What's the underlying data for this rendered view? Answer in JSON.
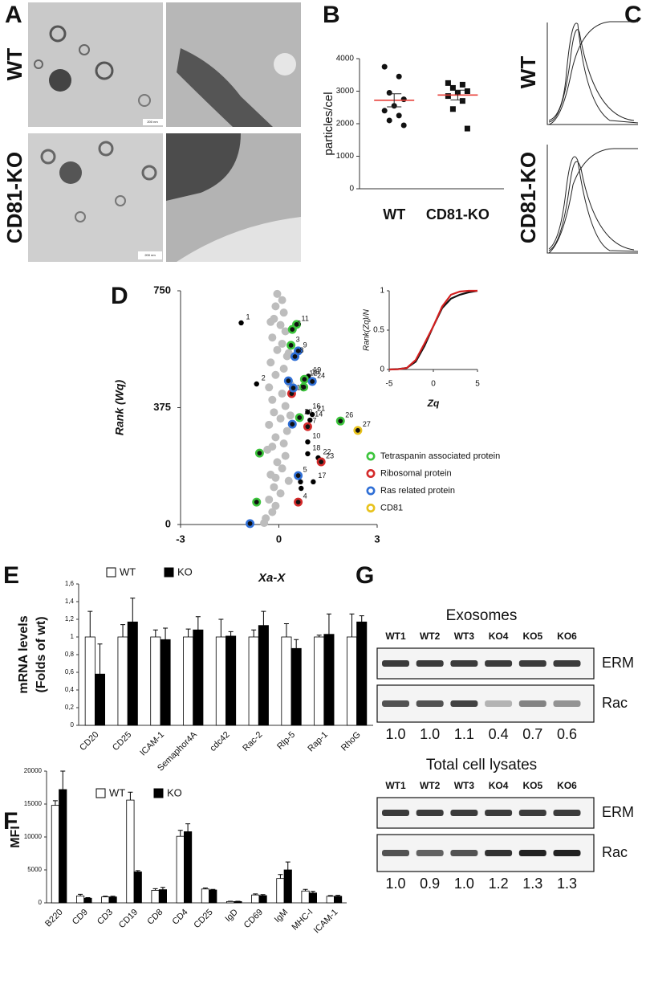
{
  "panel_A": {
    "letter": "A",
    "rows": [
      "WT",
      "CD81-KO"
    ],
    "scale_bars": [
      "200 nm",
      "200 nm"
    ]
  },
  "panel_C": {
    "letter": "C",
    "rows": [
      "WT",
      "CD81-KO"
    ]
  },
  "chart_data": [
    {
      "letter": "B",
      "type": "dotplot",
      "ylabel": "particles/cel",
      "categories": [
        "WT",
        "CD81-KO"
      ],
      "points": [
        [
          3750,
          3450,
          2950,
          2750,
          2550,
          2400,
          2250,
          2100,
          1950
        ],
        [
          3250,
          3200,
          3100,
          3000,
          2950,
          2850,
          2700,
          2450,
          1850
        ]
      ],
      "markers": [
        "circle",
        "square"
      ],
      "mean": [
        2720,
        2880
      ],
      "sem": [
        200,
        150
      ],
      "mean_color": "#e8413b",
      "ylim": [
        0,
        4000
      ],
      "yticks": [
        0,
        1000,
        2000,
        3000,
        4000
      ]
    },
    {
      "letter": "D",
      "type": "scatter",
      "ylabel": "Rank (Wq)",
      "xlim": [
        -3,
        3
      ],
      "ylim": [
        0,
        750
      ],
      "xticks": [
        -3,
        0,
        3
      ],
      "yticks": [
        0,
        375,
        750
      ],
      "series": [
        {
          "color": "#bdbdbd",
          "marker": "dot",
          "x": [
            -0.05,
            0.1,
            -0.1,
            0.15,
            -0.15,
            0.05,
            0.2,
            -0.2,
            0.1,
            -0.05,
            0.25,
            -0.25,
            0.15,
            -0.1,
            0.3,
            -0.3,
            0.1,
            -0.2,
            0.2,
            -0.15,
            0.05,
            -0.3,
            0.25,
            -0.1,
            0.15,
            -0.35,
            0.2,
            -0.05,
            0.1,
            -0.25,
            0.3,
            -0.15,
            0.05,
            -0.3,
            -0.1,
            -0.2,
            -0.4,
            -0.45,
            -0.25,
            0.35,
            -0.2,
            0.3,
            0.35,
            -0.1
          ],
          "y": [
            740,
            720,
            700,
            680,
            660,
            640,
            620,
            600,
            580,
            560,
            540,
            520,
            500,
            480,
            460,
            440,
            420,
            400,
            380,
            360,
            340,
            320,
            300,
            280,
            260,
            240,
            220,
            200,
            180,
            160,
            140,
            120,
            100,
            80,
            60,
            40,
            20,
            5,
            650,
            450,
            250,
            550,
            350,
            150
          ]
        },
        {
          "color": "#000000",
          "marker": "dot",
          "x": [
            -1.15,
            -0.68,
            0.85,
            0.9,
            0.95,
            0.88,
            1.02,
            0.88,
            0.88,
            1.2,
            1.05,
            0.66,
            0.68
          ],
          "y": [
            647,
            451,
            470,
            476,
            335,
            361,
            353,
            265,
            227,
            214,
            137,
            137,
            116
          ],
          "labels": [
            1,
            2,
            13,
            19,
            14,
            16,
            21,
            10,
            18,
            22,
            17,
            null,
            null
          ]
        },
        {
          "name": "Tetraspanin associated protein",
          "color": "#3cc43c",
          "marker": "ring",
          "x": [
            0.54,
            0.41,
            0.37,
            0.78,
            0.76,
            0.63,
            1.88,
            -0.59,
            -0.68
          ],
          "y": [
            642,
            626,
            575,
            466,
            441,
            343,
            332,
            229,
            72
          ],
          "labels": [
            11,
            6,
            3,
            12,
            25,
            20,
            26,
            null,
            null
          ]
        },
        {
          "name": "Ribosomal protein",
          "color": "#d42a2a",
          "marker": "ring",
          "x": [
            0.39,
            0.88,
            1.29,
            0.59
          ],
          "y": [
            420,
            314,
            201,
            72
          ],
          "labels": [
            15,
            7,
            23,
            4
          ]
        },
        {
          "name": "Ras related protein",
          "color": "#2f6fd6",
          "marker": "ring",
          "x": [
            0.59,
            0.49,
            1.02,
            0.29,
            0.44,
            0.41,
            0.59,
            -0.88
          ],
          "y": [
            557,
            539,
            459,
            461,
            438,
            322,
            157,
            3
          ],
          "labels": [
            9,
            8,
            24,
            null,
            null,
            null,
            5,
            null
          ]
        },
        {
          "name": "CD81",
          "color": "#e8c21c",
          "marker": "ring",
          "x": [
            2.41
          ],
          "y": [
            302
          ],
          "labels": [
            27
          ]
        }
      ]
    },
    {
      "type": "line",
      "ylabel": "Rank(Zq)/N",
      "xlabel": "Zq",
      "xlim": [
        -5,
        5
      ],
      "ylim": [
        0,
        1
      ],
      "xticks": [
        -5,
        0,
        5
      ],
      "yticks": [
        0,
        0.5,
        1
      ],
      "x": [
        -5,
        -4,
        -3,
        -2,
        -1,
        0,
        1,
        2,
        3,
        4,
        5
      ],
      "series": [
        {
          "color": "#111111",
          "values": [
            0,
            0.005,
            0.02,
            0.1,
            0.3,
            0.55,
            0.78,
            0.9,
            0.95,
            0.98,
            1
          ]
        },
        {
          "color": "#d42020",
          "values": [
            0,
            0.003,
            0.02,
            0.12,
            0.33,
            0.55,
            0.8,
            0.95,
            0.99,
            1,
            1
          ]
        }
      ]
    },
    {
      "letter": "E",
      "type": "bar",
      "ylabel": [
        "mRNA levels",
        "(Folds of wt)"
      ],
      "annotation": "Xa-X",
      "legend": "top",
      "categories": [
        "CD20",
        "CD25",
        "ICAM-1",
        "Semaphor4A",
        "cdc42",
        "Rac-2",
        "Rlp-5",
        "Rap-1",
        "RhoG"
      ],
      "ylim": [
        0,
        1.6
      ],
      "yticks": [
        0,
        {
          "value": 0.2,
          "label": "0,2"
        },
        {
          "value": 0.4,
          "label": "0,4"
        },
        {
          "value": 0.6,
          "label": "0,6"
        },
        {
          "value": 0.8,
          "label": "0,8"
        },
        1,
        {
          "value": 1.2,
          "label": "1,2"
        },
        {
          "value": 1.4,
          "label": "1,4"
        },
        {
          "value": 1.6,
          "label": "1,6"
        }
      ],
      "series": [
        {
          "name": "WT",
          "color": "#ffffff",
          "values": [
            1,
            1,
            1,
            1,
            1,
            1,
            1,
            1,
            1
          ],
          "errors": [
            0.29,
            0.14,
            0.08,
            0.09,
            0.2,
            0.08,
            0.15,
            0.02,
            0.26
          ]
        },
        {
          "name": "KO",
          "color": "#000000",
          "values": [
            0.58,
            1.17,
            0.97,
            1.08,
            1.01,
            1.13,
            0.87,
            1.03,
            1.17
          ],
          "errors": [
            0.34,
            0.27,
            0.13,
            0.15,
            0.05,
            0.16,
            0.1,
            0.23,
            0.07
          ]
        }
      ]
    },
    {
      "letter": "F",
      "type": "bar",
      "ylabel": [
        "MFI"
      ],
      "legend": "top-left",
      "categories": [
        "B220",
        "CD9",
        "CD3",
        "CD19",
        "CD8",
        "CD4",
        "CD25",
        "IgD",
        "CD69",
        "IgM",
        "MHC-I",
        "ICAM-1"
      ],
      "ylim": [
        0,
        20000
      ],
      "yticks": [
        0,
        5000,
        10000,
        15000,
        20000
      ],
      "series": [
        {
          "name": "WT",
          "color": "#ffffff",
          "values": [
            14800,
            1050,
            900,
            15600,
            1900,
            10100,
            2100,
            200,
            1200,
            3700,
            1800,
            1000
          ],
          "errors": [
            700,
            250,
            100,
            1200,
            250,
            900,
            150,
            50,
            150,
            600,
            250,
            100
          ]
        },
        {
          "name": "KO",
          "color": "#000000",
          "values": [
            17200,
            700,
            900,
            4700,
            2000,
            10800,
            1950,
            200,
            1100,
            5000,
            1500,
            1000
          ],
          "errors": [
            2800,
            100,
            100,
            200,
            350,
            1200,
            100,
            50,
            150,
            1200,
            250,
            150
          ]
        }
      ]
    },
    {
      "letter": "G",
      "type": "blot",
      "title": "Exosomes",
      "categories": [
        "WT1",
        "WT2",
        "WT3",
        "KO4",
        "KO5",
        "KO6"
      ],
      "rows": [
        "ERM",
        "Rac"
      ],
      "values": [
        1.0,
        1.0,
        1.1,
        0.4,
        0.7,
        0.6
      ],
      "value_labels": [
        "1.0",
        "1.0",
        "1.1",
        "0.4",
        "0.7",
        "0.6"
      ]
    },
    {
      "type": "blot",
      "title": "Total cell lysates",
      "categories": [
        "WT1",
        "WT2",
        "WT3",
        "KO4",
        "KO5",
        "KO6"
      ],
      "rows": [
        "ERM",
        "Rac"
      ],
      "values": [
        1.0,
        0.9,
        1.0,
        1.2,
        1.3,
        1.3
      ],
      "value_labels": [
        "1.0",
        "0.9",
        "1.0",
        "1.2",
        "1.3",
        "1.3"
      ]
    }
  ]
}
